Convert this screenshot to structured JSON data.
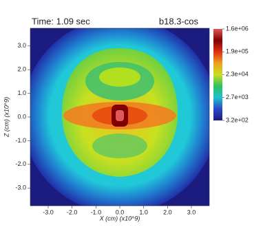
{
  "chart_data": {
    "type": "heatmap",
    "title": "Time: 1.09 sec",
    "subtitle": "b18.3-cos",
    "x_label": "X (cm) (x10^9)",
    "y_label": "Z (cm) (x10^9)",
    "xlim": [
      -3.75,
      3.75
    ],
    "ylim": [
      -3.75,
      3.75
    ],
    "xticks": [
      {
        "value": -3,
        "label": "-3.0"
      },
      {
        "value": -2,
        "label": "-2.0"
      },
      {
        "value": -1,
        "label": "-1.0"
      },
      {
        "value": 0,
        "label": "0.0"
      },
      {
        "value": 1,
        "label": "1.0"
      },
      {
        "value": 2,
        "label": "2.0"
      },
      {
        "value": 3,
        "label": "3.0"
      }
    ],
    "yticks": [
      {
        "value": -3,
        "label": "-3.0"
      },
      {
        "value": -2,
        "label": "-2.0"
      },
      {
        "value": -1,
        "label": "-1.0"
      },
      {
        "value": 0,
        "label": "0.0"
      },
      {
        "value": 1,
        "label": "1.0"
      },
      {
        "value": 2,
        "label": "2.0"
      },
      {
        "value": 3,
        "label": "3.0"
      }
    ],
    "colorbar": {
      "scale": "log",
      "lim": [
        320,
        1600000
      ],
      "ticks": [
        {
          "value": 1600000,
          "label": "1.6e+06"
        },
        {
          "value": 190000,
          "label": "1.9e+05"
        },
        {
          "value": 23000,
          "label": "2.3e+04"
        },
        {
          "value": 2700,
          "label": "2.7e+03"
        },
        {
          "value": 320,
          "label": "3.2e+02"
        }
      ],
      "colors": [
        "#1c1c80",
        "#2a48c8",
        "#20c0d0",
        "#30c060",
        "#c8e020",
        "#f0a020",
        "#e03010",
        "#800000",
        "#e05858"
      ]
    }
  }
}
